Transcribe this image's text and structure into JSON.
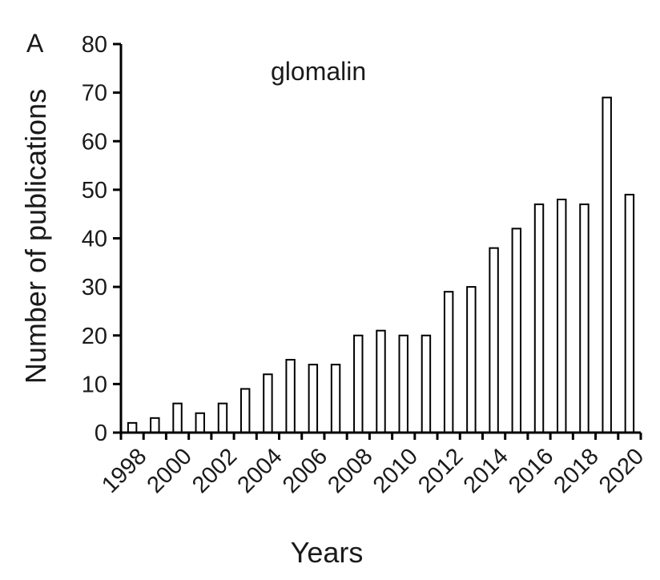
{
  "panel_label": "A",
  "chart_data": {
    "type": "bar",
    "title": "glomalin",
    "xlabel": "Years",
    "ylabel": "Number of publications",
    "categories": [
      "1998",
      "1999",
      "2000",
      "2001",
      "2002",
      "2003",
      "2004",
      "2005",
      "2006",
      "2007",
      "2008",
      "2009",
      "2010",
      "2011",
      "2012",
      "2013",
      "2014",
      "2015",
      "2016",
      "2017",
      "2018",
      "2019",
      "2020"
    ],
    "values": [
      2,
      3,
      6,
      4,
      6,
      9,
      12,
      15,
      14,
      14,
      20,
      21,
      20,
      20,
      29,
      30,
      38,
      42,
      47,
      48,
      47,
      69,
      49
    ],
    "x_tick_labels": [
      "1998",
      "2000",
      "2002",
      "2004",
      "2006",
      "2008",
      "2010",
      "2012",
      "2014",
      "2016",
      "2018",
      "2020"
    ],
    "ylim": [
      0,
      80
    ],
    "yticks": [
      0,
      10,
      20,
      30,
      40,
      50,
      60,
      70,
      80
    ],
    "grid": false,
    "legend": "none",
    "bar_fill": "#ffffff",
    "bar_stroke": "#000000"
  }
}
